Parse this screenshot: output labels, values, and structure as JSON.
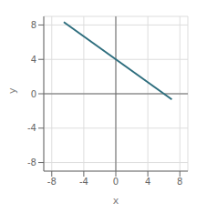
{
  "chart_data": {
    "type": "line",
    "title": "",
    "xlabel": "x",
    "ylabel": "y",
    "x": [
      -6.5,
      7
    ],
    "values": [
      8.33355,
      -0.6669
    ],
    "color": "#2e6e7e",
    "xlim": [
      -9,
      9
    ],
    "ylim": [
      -9,
      9
    ],
    "xticks": [
      -8,
      -4,
      0,
      4,
      8
    ],
    "yticks": [
      -8,
      -4,
      0,
      4,
      8
    ],
    "grid": true
  }
}
